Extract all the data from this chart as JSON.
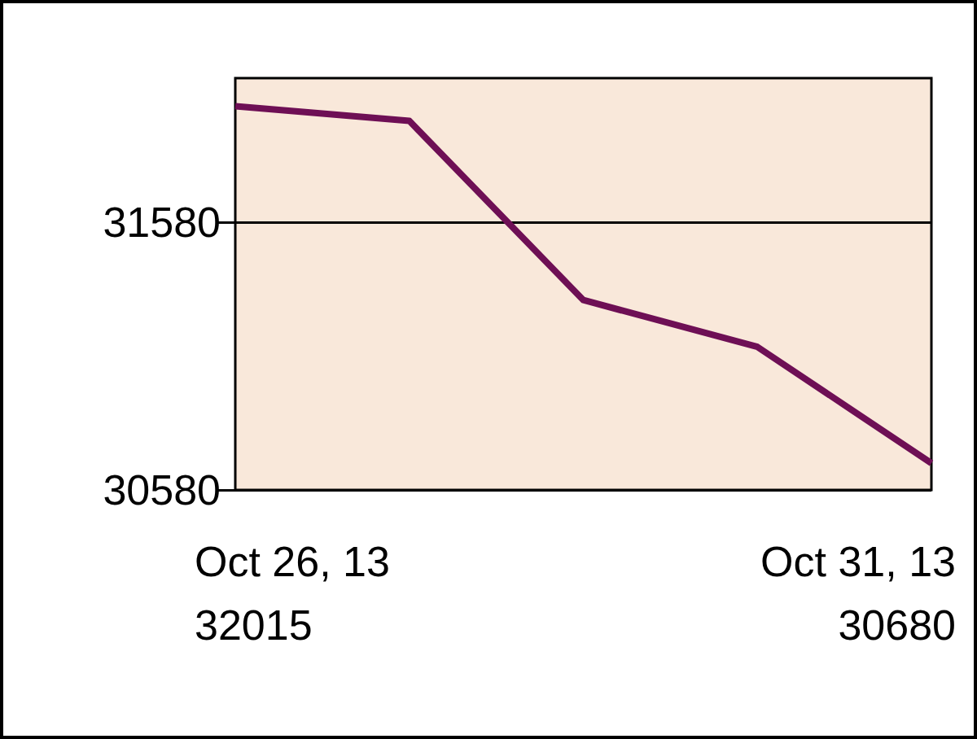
{
  "chart_data": {
    "type": "line",
    "categories": [
      null,
      null,
      null,
      null,
      null
    ],
    "series": [
      {
        "color": "#6e0f55",
        "values": [
          32015,
          31960,
          31290,
          31115,
          30680
        ]
      }
    ],
    "annotations": [
      "Oct 26, 13",
      "32015",
      "Oct 31, 13",
      "30680"
    ],
    "ylim": [
      30580,
      32120
    ],
    "yticks": [
      30580,
      31580
    ],
    "grid": "y"
  }
}
